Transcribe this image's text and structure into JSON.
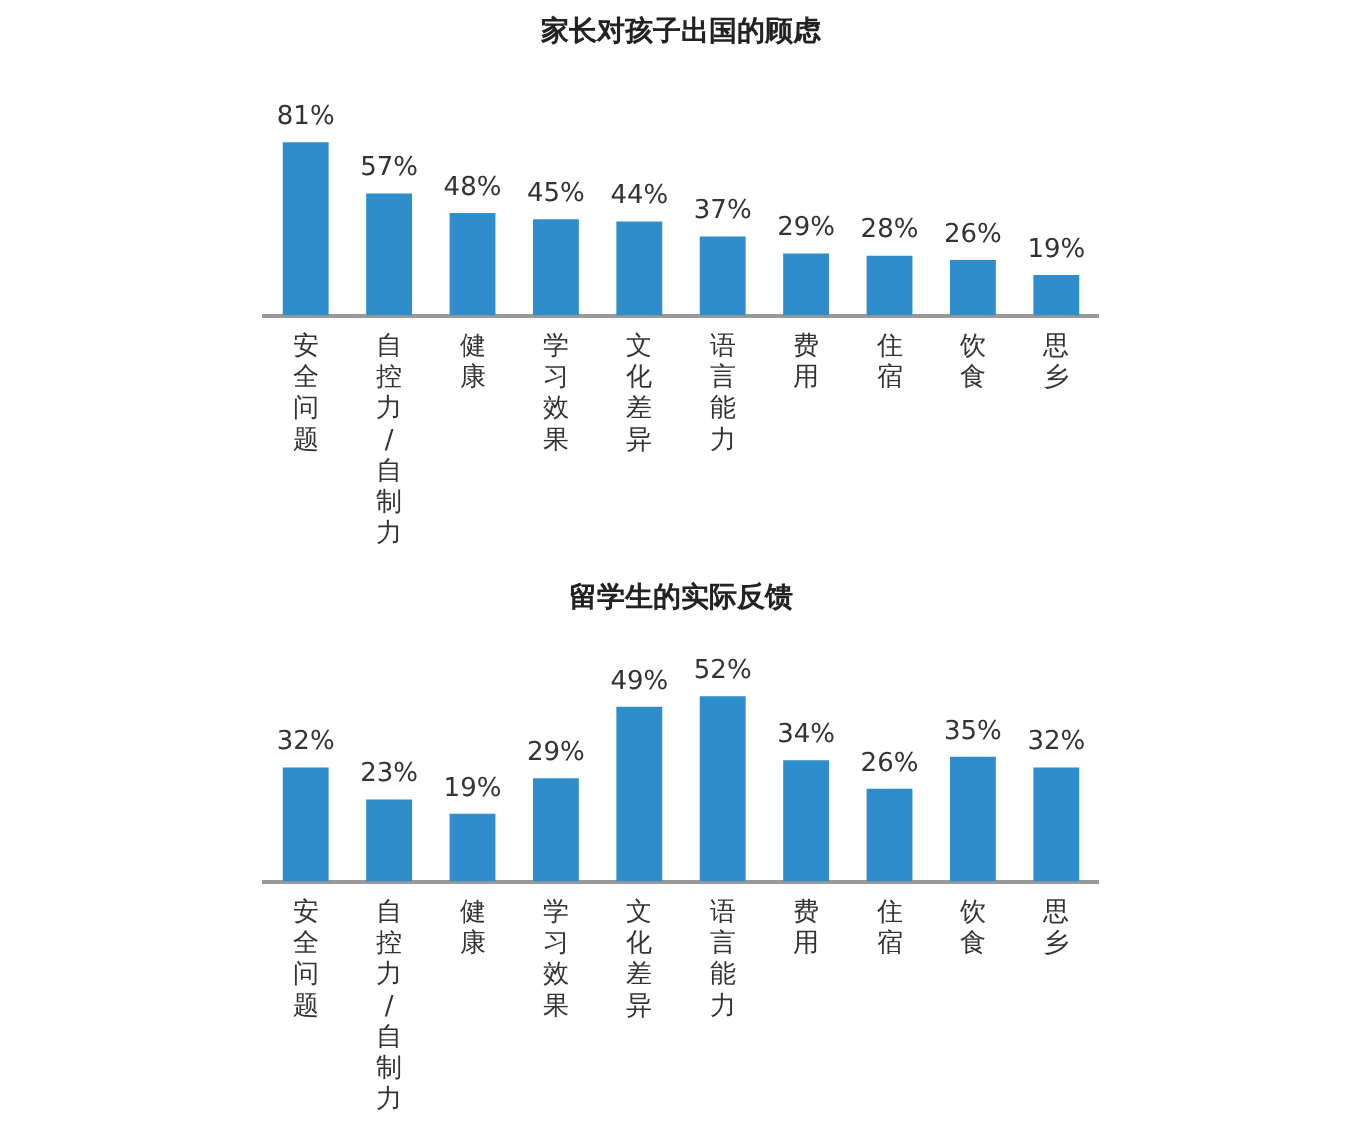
{
  "chart_data": [
    {
      "type": "bar",
      "title": "家长对孩子出国的顾虑",
      "categories": [
        "安全问题",
        "自控力/自制力",
        "健康",
        "学习效果",
        "文化差异",
        "语言能力",
        "费用",
        "住宿",
        "饮食",
        "思乡"
      ],
      "values": [
        81,
        57,
        48,
        45,
        44,
        37,
        29,
        28,
        26,
        19
      ],
      "value_labels": [
        "81%",
        "57%",
        "48%",
        "45%",
        "44%",
        "37%",
        "29%",
        "28%",
        "26%",
        "19%"
      ],
      "color": "#2f8dcb"
    },
    {
      "type": "bar",
      "title": "留学生的实际反馈",
      "categories": [
        "安全问题",
        "自控力/自制力",
        "健康",
        "学习效果",
        "文化差异",
        "语言能力",
        "费用",
        "住宿",
        "饮食",
        "思乡"
      ],
      "values": [
        32,
        23,
        19,
        29,
        49,
        52,
        34,
        26,
        35,
        32
      ],
      "value_labels": [
        "32%",
        "23%",
        "19%",
        "29%",
        "49%",
        "52%",
        "34%",
        "26%",
        "35%",
        "32%"
      ],
      "color": "#2f8dcb"
    }
  ]
}
